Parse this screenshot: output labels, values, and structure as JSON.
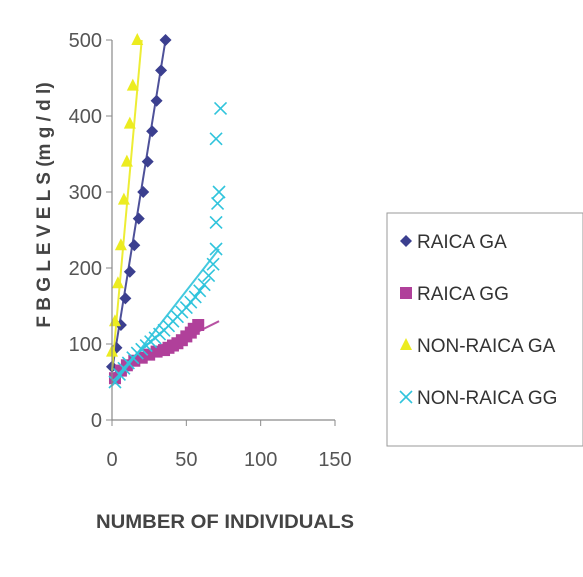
{
  "chart_data": {
    "type": "scatter",
    "xlabel": "NUMBER OF INDIVIDUALS",
    "ylabel": "F B G  L E V E L S  (m g / d l)",
    "xlim": [
      0,
      150
    ],
    "ylim": [
      0,
      500
    ],
    "x_ticks": [
      "0",
      "50",
      "100",
      "150"
    ],
    "y_ticks": [
      "0",
      "100",
      "200",
      "300",
      "400",
      "500"
    ],
    "grid": false,
    "legend_position": "right",
    "series": [
      {
        "name": "RAICA GA",
        "marker": "diamond",
        "color": "#3b3f8f",
        "points": [
          [
            0,
            70
          ],
          [
            3,
            95
          ],
          [
            6,
            125
          ],
          [
            9,
            160
          ],
          [
            12,
            195
          ],
          [
            15,
            230
          ],
          [
            18,
            265
          ],
          [
            21,
            300
          ],
          [
            24,
            340
          ],
          [
            27,
            380
          ],
          [
            30,
            420
          ],
          [
            33,
            460
          ],
          [
            36,
            500
          ]
        ],
        "trendline": [
          [
            0,
            65
          ],
          [
            36,
            500
          ]
        ]
      },
      {
        "name": "RAICA GG",
        "marker": "square",
        "color": "#b0409a",
        "points": [
          [
            2,
            55
          ],
          [
            6,
            65
          ],
          [
            10,
            72
          ],
          [
            15,
            78
          ],
          [
            20,
            82
          ],
          [
            25,
            86
          ],
          [
            30,
            90
          ],
          [
            35,
            92
          ],
          [
            38,
            95
          ],
          [
            41,
            98
          ],
          [
            44,
            101
          ],
          [
            47,
            105
          ],
          [
            50,
            110
          ],
          [
            53,
            115
          ],
          [
            55,
            120
          ],
          [
            58,
            125
          ]
        ],
        "trendline": [
          [
            0,
            60
          ],
          [
            72,
            130
          ]
        ]
      },
      {
        "name": "NON-RAICA GA",
        "marker": "triangle",
        "color": "#ecec20",
        "points": [
          [
            0,
            90
          ],
          [
            2,
            130
          ],
          [
            4,
            180
          ],
          [
            6,
            230
          ],
          [
            8,
            290
          ],
          [
            10,
            340
          ],
          [
            12,
            390
          ],
          [
            14,
            440
          ],
          [
            17,
            500
          ]
        ],
        "trendline": [
          [
            0,
            65
          ],
          [
            20,
            500
          ]
        ]
      },
      {
        "name": "NON-RAICA GG",
        "marker": "x",
        "color": "#30c4dc",
        "points": [
          [
            2,
            50
          ],
          [
            5,
            60
          ],
          [
            8,
            68
          ],
          [
            11,
            75
          ],
          [
            14,
            82
          ],
          [
            17,
            88
          ],
          [
            20,
            93
          ],
          [
            23,
            98
          ],
          [
            26,
            103
          ],
          [
            29,
            108
          ],
          [
            32,
            113
          ],
          [
            35,
            118
          ],
          [
            38,
            124
          ],
          [
            41,
            130
          ],
          [
            44,
            136
          ],
          [
            47,
            142
          ],
          [
            50,
            148
          ],
          [
            53,
            155
          ],
          [
            56,
            162
          ],
          [
            59,
            170
          ],
          [
            62,
            178
          ],
          [
            65,
            190
          ],
          [
            68,
            205
          ],
          [
            70,
            225
          ],
          [
            70,
            260
          ],
          [
            71,
            285
          ],
          [
            72,
            300
          ],
          [
            70,
            370
          ],
          [
            73,
            410
          ]
        ],
        "trendline": [
          [
            0,
            45
          ],
          [
            72,
            225
          ]
        ]
      }
    ]
  }
}
